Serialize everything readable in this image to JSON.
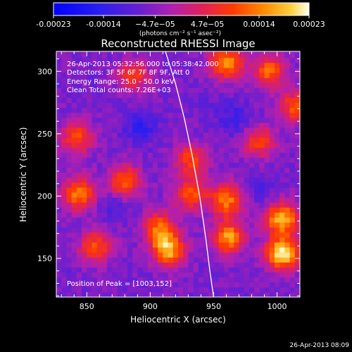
{
  "chart_data": {
    "type": "heatmap",
    "title": "Reconstructed RHESSI Image",
    "xlabel": "Heliocentric X (arcsec)",
    "ylabel": "Heliocentric Y (arcsec)",
    "xlim": [
      826,
      1018
    ],
    "ylim": [
      119,
      316
    ],
    "x_ticks": [
      850,
      900,
      950,
      1000
    ],
    "y_ticks": [
      150,
      200,
      250,
      300
    ],
    "colorbar": {
      "label": "(photons cm⁻² s⁻¹ asec⁻²)",
      "range": [
        -0.00023,
        0.00023
      ],
      "tick_values": [
        -0.00023,
        -0.00014,
        -4.7e-05,
        4.7e-05,
        0.00014,
        0.00023
      ],
      "tick_labels": [
        "-0.00023",
        "-0.00014",
        "−4.7e−05",
        "4.7e−05",
        "0.00014",
        "0.00023"
      ]
    },
    "annotations": [
      "26-Apr-2013 05:32:56.000 to 05:38:42.000",
      "Detectors: 3F 5F 6F 7F 8F 9F, Att 0",
      "Energy Range: 25.0 - 50.0 keV",
      "Clean     Total counts: 7.26E+03",
      "Position of Peak = [1003,152]"
    ],
    "limb_curve": [
      [
        912,
        316
      ],
      [
        920,
        290
      ],
      [
        927,
        262
      ],
      [
        933,
        233
      ],
      [
        939,
        200
      ],
      [
        944,
        165
      ],
      [
        947,
        140
      ],
      [
        950,
        119
      ]
    ],
    "bright_regions": [
      {
        "x": 1002,
        "y": 152,
        "value": 0.00023
      },
      {
        "x": 1002,
        "y": 180,
        "value": 0.00019
      },
      {
        "x": 960,
        "y": 165,
        "value": 0.00016
      },
      {
        "x": 958,
        "y": 195,
        "value": 0.00014
      },
      {
        "x": 912,
        "y": 155,
        "value": 0.00018
      },
      {
        "x": 905,
        "y": 173,
        "value": 0.00012
      },
      {
        "x": 842,
        "y": 200,
        "value": 0.00014
      },
      {
        "x": 855,
        "y": 158,
        "value": 0.0001
      },
      {
        "x": 878,
        "y": 210,
        "value": 0.00012
      },
      {
        "x": 930,
        "y": 200,
        "value": 0.00011
      },
      {
        "x": 930,
        "y": 228,
        "value": 9e-05
      },
      {
        "x": 984,
        "y": 242,
        "value": 9e-05
      },
      {
        "x": 840,
        "y": 245,
        "value": 0.0001
      },
      {
        "x": 885,
        "y": 295,
        "value": 8e-05
      },
      {
        "x": 958,
        "y": 305,
        "value": 0.00016
      },
      {
        "x": 992,
        "y": 298,
        "value": 0.00012
      },
      {
        "x": 1012,
        "y": 270,
        "value": 0.0001
      }
    ],
    "dim_regions": [
      {
        "x": 890,
        "y": 255,
        "value": -0.00014
      },
      {
        "x": 965,
        "y": 260,
        "value": -0.00012
      },
      {
        "x": 870,
        "y": 190,
        "value": -0.0001
      },
      {
        "x": 985,
        "y": 205,
        "value": -0.0001
      },
      {
        "x": 945,
        "y": 270,
        "value": -8e-05
      }
    ]
  },
  "footer": {
    "timestamp": "26-Apr-2013 08:09"
  }
}
